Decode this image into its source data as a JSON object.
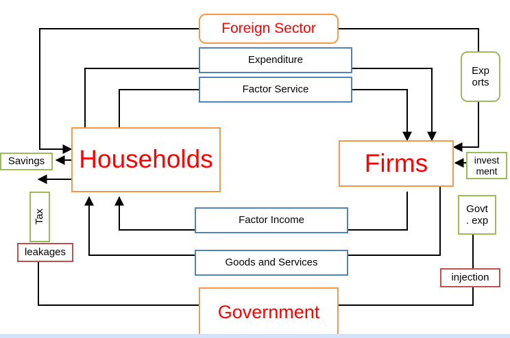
{
  "nodes": {
    "foreign_sector": "Foreign Sector",
    "households": "Households",
    "firms": "Firms",
    "government": "Government"
  },
  "flows": {
    "expenditure": "Expenditure",
    "factor_service": "Factor Service",
    "factor_income": "Factor Income",
    "goods_and_services": "Goods and Services"
  },
  "tags": {
    "savings": "Savings",
    "tax": "Tax",
    "leakages": "leakages",
    "exports_1": "Exp",
    "exports_2": "orts",
    "investment_1": "invest",
    "investment_2": "ment",
    "govt_exp_1": "Govt",
    "govt_exp_2": ". exp",
    "injection": "injection"
  },
  "colors": {
    "node_border": "#f79646",
    "flow_border": "#4f81bd",
    "tag_border": "#9bbb59",
    "label_border": "#c0504d",
    "title_text": "#ff0000",
    "arrow": "#000000"
  }
}
